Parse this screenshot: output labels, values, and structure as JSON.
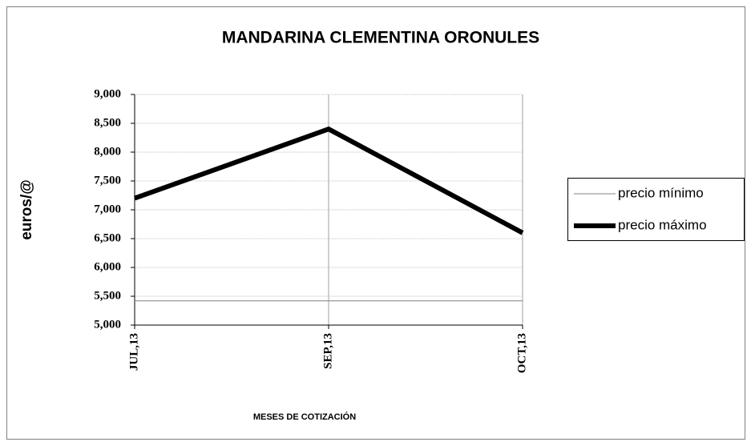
{
  "chart_data": {
    "type": "line",
    "title": "MANDARINA CLEMENTINA ORONULES",
    "x_label": "MESES DE COTIZACIÓN",
    "y_label": "euros/@",
    "categories": [
      "JUL,13",
      "SEP,13",
      "OCT,13"
    ],
    "series": [
      {
        "name": "precio mínimo",
        "color": "#808080",
        "values": [
          5420,
          5420,
          5420
        ]
      },
      {
        "name": "precio máximo",
        "color": "#000000",
        "values": [
          7200,
          8400,
          6600
        ]
      }
    ],
    "ylim": [
      5000,
      9000
    ],
    "yticks": [
      {
        "value": 5000,
        "label": "5,000"
      },
      {
        "value": 5500,
        "label": "5,500"
      },
      {
        "value": 6000,
        "label": "6,000"
      },
      {
        "value": 6500,
        "label": "6,500"
      },
      {
        "value": 7000,
        "label": "7,000"
      },
      {
        "value": 7500,
        "label": "7,500"
      },
      {
        "value": 8000,
        "label": "8,000"
      },
      {
        "value": 8500,
        "label": "8,500"
      },
      {
        "value": 9000,
        "label": "9,000"
      }
    ],
    "grid": true,
    "legend": "right"
  }
}
